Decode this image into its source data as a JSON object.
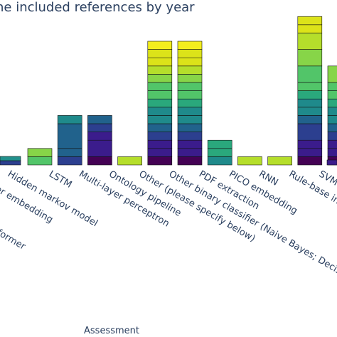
{
  "chart_data": {
    "type": "bar",
    "stacked": true,
    "title": "ne included references by year",
    "xlabel": "Assessment",
    "ylabel": "",
    "categories": [
      "Hidden markov model",
      "LSTM",
      "Multi-layer perceptron",
      "Ontology pipeline",
      "Other (please specify below)",
      "Other binary classifier (Naive Bayes; Decision T",
      "PDF extraction",
      "PICO embedding",
      "RNN",
      "Rule-base inclu",
      "SVM"
    ],
    "offscreen_labels": [
      "cter embedding",
      "nsformer"
    ],
    "segment_colors": [
      "#440154",
      "#3b1c8c",
      "#2c3f8f",
      "#21628c",
      "#1f8a8b",
      "#2aa87c",
      "#52c569",
      "#87d548",
      "#b5de2b",
      "#dce319",
      "#f4ee1e"
    ],
    "stacks": [
      [
        1,
        1
      ],
      [
        1,
        1,
        3,
        1
      ],
      [
        1,
        2,
        1,
        1,
        1
      ],
      [
        1
      ],
      [
        1,
        1,
        1,
        1,
        1,
        1,
        1,
        1,
        1,
        1,
        1,
        1,
        1,
        1,
        1
      ],
      [
        1,
        1,
        1,
        1,
        1,
        1,
        1,
        1,
        1,
        1,
        1,
        1,
        1,
        1,
        1
      ],
      [
        1,
        1,
        1
      ],
      [
        1
      ],
      [
        1
      ],
      [
        1,
        1,
        1,
        2,
        1,
        1,
        1,
        1,
        1,
        2,
        2,
        2,
        1,
        1
      ],
      [
        1,
        1,
        1,
        1,
        1,
        1,
        1,
        1,
        1,
        1,
        2
      ]
    ],
    "edge_bars": {
      "left_partial": [
        1,
        1
      ],
      "right_partial": [
        1
      ]
    }
  }
}
